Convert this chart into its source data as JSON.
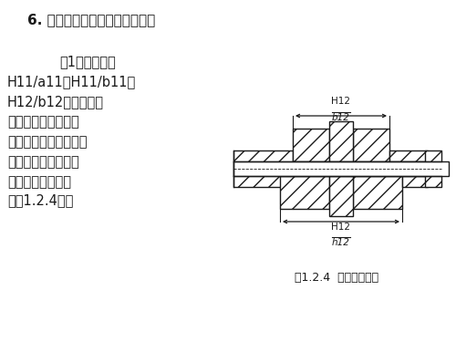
{
  "title": "6. 基孔制优先、常用配合的应用",
  "para1_title": "（1）间隙配合",
  "para1_line1": "H11/a11、H11/b11、",
  "para1_line2": "H12/b12：间隙特别",
  "para1_line3": "大。用于高温和工作",
  "para1_line4": "时要求大间隙的配合，",
  "para1_line5": "一般很少应用。如管",
  "para1_line6": "道法兰连接的配合",
  "para1_line7": "（图1.2.4）。",
  "fig_caption": "图1.2.4  管道法兰连接",
  "label_top_num": "H12",
  "label_top_den": "b12",
  "label_bot_num": "H12",
  "label_bot_den": "h12",
  "bg_color": "#ffffff",
  "text_color": "#1a1a1a",
  "line_color": "#1a1a1a"
}
